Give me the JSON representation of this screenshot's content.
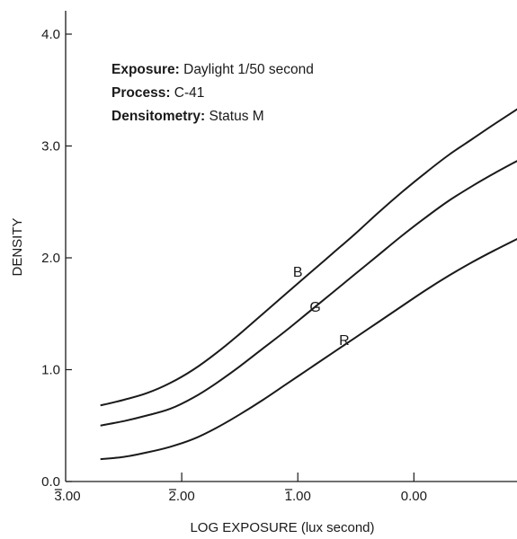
{
  "chart_data": {
    "type": "line",
    "xlabel": "LOG EXPOSURE (lux second)",
    "ylabel": "DENSITY",
    "xlim": [
      -3.0,
      0.95
    ],
    "ylim": [
      0.0,
      4.2
    ],
    "x_ticks": [
      {
        "value": -3.0,
        "label": "3.00",
        "bar": true
      },
      {
        "value": -2.0,
        "label": "2.00",
        "bar": true
      },
      {
        "value": -1.0,
        "label": "1.00",
        "bar": true
      },
      {
        "value": 0.0,
        "label": "0.00",
        "bar": false
      }
    ],
    "y_ticks": [
      {
        "value": 0.0,
        "label": "0.0"
      },
      {
        "value": 1.0,
        "label": "1.0"
      },
      {
        "value": 2.0,
        "label": "2.0"
      },
      {
        "value": 3.0,
        "label": "3.0"
      },
      {
        "value": 4.0,
        "label": "4.0"
      }
    ],
    "annotations": [
      {
        "key": "Exposure:",
        "text": "Daylight 1/50 second"
      },
      {
        "key": "Process:",
        "text": "C-41"
      },
      {
        "key": "Densitometry:",
        "text": "Status M"
      }
    ],
    "series": [
      {
        "name": "B",
        "x": [
          -2.7,
          -2.5,
          -2.3,
          -2.1,
          -1.9,
          -1.7,
          -1.5,
          -1.3,
          -1.1,
          -0.9,
          -0.7,
          -0.5,
          -0.3,
          -0.1,
          0.1,
          0.3,
          0.5,
          0.7,
          0.95
        ],
        "y": [
          0.68,
          0.73,
          0.79,
          0.88,
          1.0,
          1.15,
          1.32,
          1.5,
          1.68,
          1.86,
          2.04,
          2.22,
          2.41,
          2.59,
          2.76,
          2.92,
          3.06,
          3.2,
          3.37
        ],
        "label_at": {
          "x": -1.0,
          "y": 1.83
        }
      },
      {
        "name": "G",
        "x": [
          -2.7,
          -2.5,
          -2.3,
          -2.1,
          -1.9,
          -1.7,
          -1.5,
          -1.3,
          -1.1,
          -0.9,
          -0.7,
          -0.5,
          -0.3,
          -0.1,
          0.1,
          0.3,
          0.5,
          0.7,
          0.95
        ],
        "y": [
          0.5,
          0.54,
          0.59,
          0.65,
          0.75,
          0.88,
          1.03,
          1.19,
          1.35,
          1.52,
          1.69,
          1.86,
          2.03,
          2.2,
          2.36,
          2.51,
          2.64,
          2.76,
          2.9
        ],
        "label_at": {
          "x": -0.85,
          "y": 1.52
        }
      },
      {
        "name": "R",
        "x": [
          -2.7,
          -2.5,
          -2.3,
          -2.1,
          -1.9,
          -1.7,
          -1.5,
          -1.3,
          -1.1,
          -0.9,
          -0.7,
          -0.5,
          -0.3,
          -0.1,
          0.1,
          0.3,
          0.5,
          0.7,
          0.95
        ],
        "y": [
          0.2,
          0.22,
          0.26,
          0.31,
          0.38,
          0.48,
          0.6,
          0.73,
          0.87,
          1.01,
          1.15,
          1.29,
          1.43,
          1.57,
          1.71,
          1.84,
          1.96,
          2.07,
          2.2
        ],
        "label_at": {
          "x": -0.6,
          "y": 1.22
        }
      }
    ]
  }
}
